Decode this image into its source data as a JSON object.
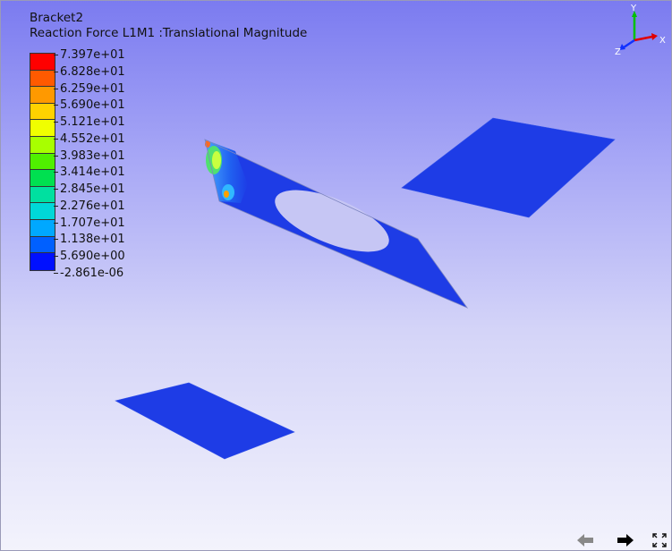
{
  "viewer": {
    "model_name": "Bracket2",
    "result_title": "Reaction Force L1M1 :Translational Magnitude"
  },
  "legend": {
    "labels": [
      "7.397e+01",
      "6.828e+01",
      "6.259e+01",
      "5.690e+01",
      "5.121e+01",
      "4.552e+01",
      "3.983e+01",
      "3.414e+01",
      "2.845e+01",
      "2.276e+01",
      "1.707e+01",
      "1.138e+01",
      "5.690e+00",
      "-2.861e-06"
    ],
    "colors": [
      "#ff0000",
      "#ff5a00",
      "#ff9900",
      "#ffd200",
      "#f0ff00",
      "#a8ff00",
      "#50f000",
      "#00e050",
      "#00e0a0",
      "#00d8d8",
      "#00a8ff",
      "#0060ff",
      "#0010ff"
    ]
  },
  "triad": {
    "axis_y": "Y",
    "axis_z": "Z",
    "axis_x": "X",
    "colors": {
      "x": "#e00000",
      "y": "#00c000",
      "z": "#1030ff"
    }
  },
  "toolbar": {
    "back_icon": "arrow-left-icon",
    "forward_icon": "arrow-right-icon",
    "fullscreen_icon": "fullscreen-icon"
  },
  "scene": {
    "plate_color": "#1e3ce6",
    "hole_color": "#c8c8f6"
  }
}
